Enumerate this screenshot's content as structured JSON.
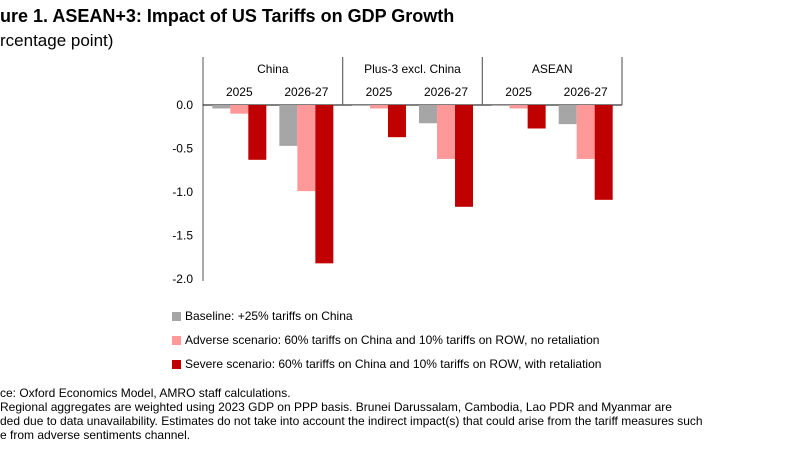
{
  "title": "ure 1. ASEAN+3: Impact of US Tariffs on GDP Growth",
  "subtitle": "rcentage point)",
  "chart_data": {
    "type": "bar",
    "groups": [
      "China",
      "Plus-3 excl. China",
      "ASEAN"
    ],
    "periods": [
      "2025",
      "2026-27"
    ],
    "categories": [
      "China 2025",
      "China 2026-27",
      "Plus-3 excl. China 2025",
      "Plus-3 excl. China 2026-27",
      "ASEAN 2025",
      "ASEAN 2026-27"
    ],
    "series": [
      {
        "name": "Baseline: +25% tariffs on China",
        "color": "#a6a6a6",
        "values": [
          -0.04,
          -0.47,
          -0.01,
          -0.21,
          -0.01,
          -0.22
        ]
      },
      {
        "name": "Adverse scenario: 60% tariffs on China and 10% tariffs on ROW, no retaliation",
        "color": "#ff9999",
        "values": [
          -0.1,
          -0.99,
          -0.04,
          -0.62,
          -0.04,
          -0.62
        ]
      },
      {
        "name": "Severe scenario: 60% tariffs on China and 10% tariffs on ROW, with retaliation",
        "color": "#c00000",
        "values": [
          -0.63,
          -1.82,
          -0.37,
          -1.17,
          -0.27,
          -1.09
        ]
      }
    ],
    "yticks": [
      "0.0",
      "-0.5",
      "-1.0",
      "-1.5",
      "-2.0"
    ],
    "ylim": [
      -2.0,
      0.0
    ],
    "grid": false,
    "legend_position": "bottom"
  },
  "footer": {
    "source": "ce: Oxford Economics Model, AMRO staff calculations.",
    "note_lines": [
      " Regional aggregates are weighted using 2023 GDP on PPP basis. Brunei Darussalam, Cambodia, Lao PDR and Myanmar are",
      "ded due to data unavailability.  Estimates do not take into account the indirect impact(s) that could arise from the tariff measures such",
      "e from adverse sentiments channel."
    ]
  }
}
